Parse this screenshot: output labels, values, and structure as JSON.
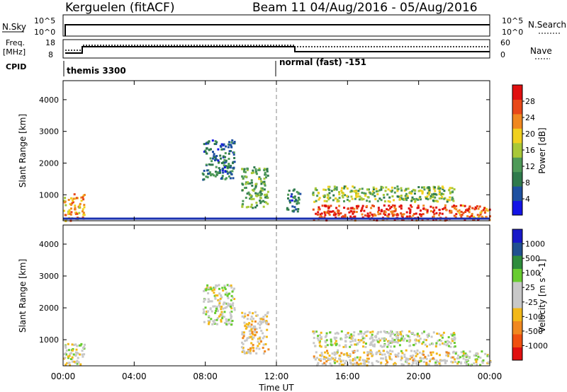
{
  "header": {
    "station": "Kerguelen (fitACF)",
    "beam_range": "Beam 11 04/Aug/2016 - 05/Aug/2016"
  },
  "top_panels": {
    "nsky_label": "N.Sky",
    "nsky_ticks": [
      "10^5",
      "10^0"
    ],
    "nsearch_label": "N.Search",
    "nsearch_ticks": [
      "10^5",
      "10^0"
    ],
    "freq_label": "Freq.",
    "freq_unit": "[MHz]",
    "freq_ticks": [
      "18",
      "8"
    ],
    "nave_label": "Nave",
    "nave_ticks": [
      "60",
      "0"
    ],
    "cpid_label": "CPID",
    "cpid_modes": [
      "themis 3300",
      "normal (fast) -151"
    ]
  },
  "colors": {
    "power": [
      "#1414e6",
      "#1e50a0",
      "#2f7a4c",
      "#4e9a58",
      "#a8c838",
      "#f0d020",
      "#f08820",
      "#e84818",
      "#e01010"
    ],
    "velocity": [
      "#e01010",
      "#f05010",
      "#f08820",
      "#f2b818",
      "#c8c8c8",
      "#c8c8c8",
      "#68cc30",
      "#2e8c3c",
      "#205090",
      "#1818c8"
    ]
  },
  "chart_data": [
    {
      "type": "heatmap",
      "title": "",
      "xlabel": "",
      "ylabel": "Slant Range [km]",
      "x_ticks": [
        "00:00",
        "04:00",
        "08:00",
        "12:00",
        "16:00",
        "20:00",
        "00:00"
      ],
      "xlim": [
        0,
        24
      ],
      "ylim": [
        180,
        4600
      ],
      "y_ticks": [
        1000,
        2000,
        3000,
        4000
      ],
      "colorbar": {
        "label": "Power [dB]",
        "ticks": [
          "4",
          "8",
          "12",
          "16",
          "20",
          "24",
          "28"
        ],
        "range": [
          0,
          30
        ]
      },
      "regions": [
        {
          "hours": [
            0,
            1.2
          ],
          "km": [
            200,
            1050
          ],
          "value": 20
        },
        {
          "hours": [
            7.8,
            9.6
          ],
          "km": [
            1500,
            2750
          ],
          "value": 8
        },
        {
          "hours": [
            10,
            11.5
          ],
          "km": [
            600,
            1900
          ],
          "value": 12
        },
        {
          "hours": [
            12.5,
            13.3
          ],
          "km": [
            500,
            1200
          ],
          "value": 8
        },
        {
          "hours": [
            14,
            22
          ],
          "km": [
            800,
            1300
          ],
          "value": 14
        },
        {
          "hours": [
            14,
            22
          ],
          "km": [
            220,
            700
          ],
          "value": 26
        },
        {
          "hours": [
            22,
            24
          ],
          "km": [
            220,
            700
          ],
          "value": 24
        }
      ]
    },
    {
      "type": "heatmap",
      "title": "",
      "xlabel": "Time UT",
      "ylabel": "Slant Range [km]",
      "x_ticks": [
        "00:00",
        "04:00",
        "08:00",
        "12:00",
        "16:00",
        "20:00",
        "00:00"
      ],
      "xlim": [
        0,
        24
      ],
      "ylim": [
        180,
        4600
      ],
      "y_ticks": [
        1000,
        2000,
        3000,
        4000
      ],
      "colorbar": {
        "label": "Velocity [m s^-1]",
        "ticks": [
          "-1000",
          "-500",
          "-100",
          "-25",
          "25",
          "100",
          "500",
          "1000"
        ],
        "range": [
          -1000,
          1000
        ]
      },
      "regions": [
        {
          "hours": [
            0,
            1.2
          ],
          "km": [
            200,
            900
          ],
          "value": 0
        },
        {
          "hours": [
            7.8,
            9.6
          ],
          "km": [
            1500,
            2750
          ],
          "value": 0
        },
        {
          "hours": [
            10,
            11.5
          ],
          "km": [
            600,
            1900
          ],
          "value": -200
        },
        {
          "hours": [
            14,
            22
          ],
          "km": [
            800,
            1300
          ],
          "value": 0
        },
        {
          "hours": [
            14,
            22
          ],
          "km": [
            220,
            700
          ],
          "value": -120
        },
        {
          "hours": [
            22,
            24
          ],
          "km": [
            220,
            700
          ],
          "value": 50
        }
      ]
    }
  ]
}
